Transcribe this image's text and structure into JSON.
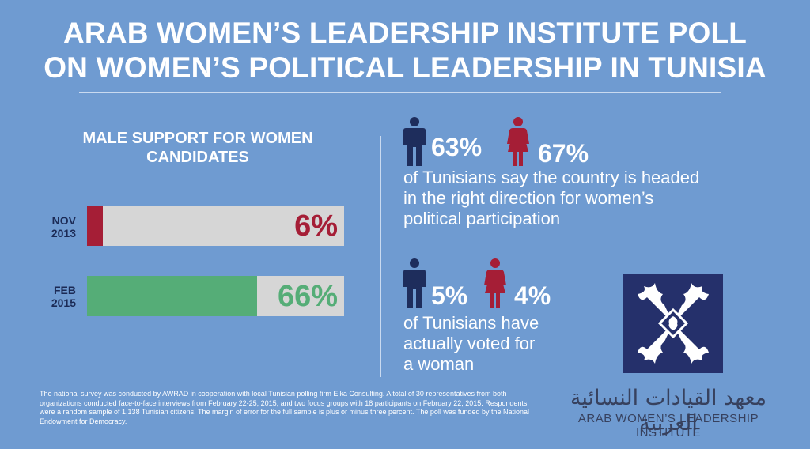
{
  "title_line1": "ARAB WOMEN’S LEADERSHIP INSTITUTE POLL",
  "title_line2": "ON WOMEN’S POLITICAL LEADERSHIP IN TUNISIA",
  "male_support": {
    "heading_line1": "MALE SUPPORT FOR WOMEN",
    "heading_line2": "CANDIDATES"
  },
  "chart_data": {
    "type": "bar",
    "title": "MALE SUPPORT FOR WOMEN CANDIDATES",
    "categories": [
      "NOV 2013",
      "FEB 2015"
    ],
    "values": [
      6,
      66
    ],
    "value_labels": [
      "6%",
      "66%"
    ],
    "ylim": [
      0,
      100
    ],
    "colors": [
      "#a51e36",
      "#55ad77"
    ]
  },
  "bars": [
    {
      "label_line1": "NOV",
      "label_line2": "2013",
      "value": 6,
      "value_label": "6%",
      "color": "#a51e36"
    },
    {
      "label_line1": "FEB",
      "label_line2": "2015",
      "value": 66,
      "value_label": "66%",
      "color": "#55ad77"
    }
  ],
  "stat1": {
    "male_value": "63%",
    "female_value": "67%",
    "text_line1": "of Tunisians say the country is headed",
    "text_line2": "in the right direction for women’s",
    "text_line3": "political participation"
  },
  "stat2": {
    "male_value": "5%",
    "female_value": "4%",
    "text_line1": "of Tunisians have",
    "text_line2": "actually voted for",
    "text_line3": "a woman"
  },
  "colors": {
    "background": "#6f9bd1",
    "male_icon": "#1e2d5c",
    "female_icon": "#a51e36",
    "logo_bg": "#25306b"
  },
  "footnote": "The national survey was conducted by AWRAD in cooperation with local Tunisian polling firm Elka Consulting.  A total of 30 representatives from both organizations conducted face-to-face interviews from February 22-25, 2015, and two focus groups with 18 participants on February 22, 2015. Respondents were a random sample of 1,138 Tunisian citizens.  The margin of error for the full sample is plus or minus three percent.  The poll was funded by the National Endowment for Democracy.",
  "logo": {
    "arabic_name": "معهد القيادات النسائية العربية",
    "english_name": "ARAB WOMEN’S LEADERSHIP INSTITUTE"
  }
}
